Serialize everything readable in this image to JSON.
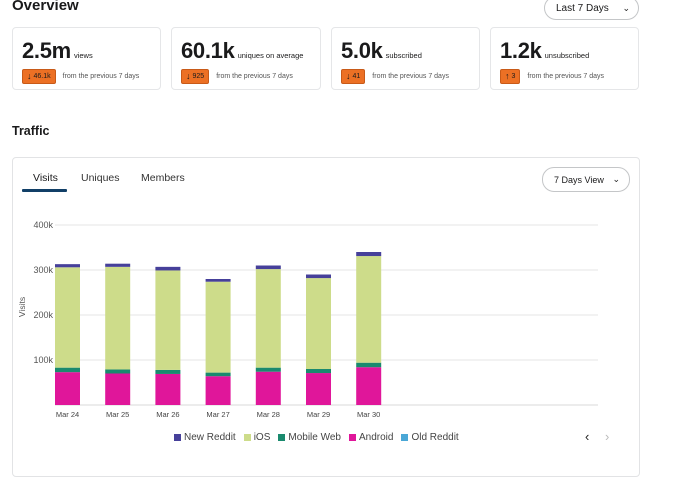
{
  "overview": {
    "title": "Overview",
    "range_select": {
      "value": "Last 7 Days"
    },
    "stats": [
      {
        "value": "2.5m",
        "label": "views",
        "delta": "46.1k",
        "direction": "down",
        "note": "from the previous 7 days"
      },
      {
        "value": "60.1k",
        "label": "uniques on average",
        "delta": "925",
        "direction": "down",
        "note": "from the previous 7 days"
      },
      {
        "value": "5.0k",
        "label": "subscribed",
        "delta": "41",
        "direction": "down",
        "note": "from the previous 7 days"
      },
      {
        "value": "1.2k",
        "label": "unsubscribed",
        "delta": "3",
        "direction": "up",
        "note": "from the previous 7 days"
      }
    ]
  },
  "traffic": {
    "title": "Traffic",
    "tabs": [
      "Visits",
      "Uniques",
      "Members"
    ],
    "active_tab": "Visits",
    "view_select": {
      "value": "7 Days View"
    }
  },
  "colors": {
    "new_reddit": "#46409a",
    "ios": "#cddc8a",
    "mobile_web": "#1a8a6e",
    "android": "#e0169a",
    "old_reddit": "#4aa7d6",
    "badge": "#ec7024",
    "accent": "#113f67"
  },
  "chart_data": {
    "type": "bar",
    "stacked": true,
    "title": "",
    "xlabel": "",
    "ylabel": "Visits",
    "ylim": [
      0,
      400000
    ],
    "yticks": [
      "100k",
      "200k",
      "300k",
      "400k"
    ],
    "ytick_values": [
      100000,
      200000,
      300000,
      400000
    ],
    "categories": [
      "Mar 24",
      "Mar 25",
      "Mar 26",
      "Mar 27",
      "Mar 28",
      "Mar 29",
      "Mar 30"
    ],
    "series": [
      {
        "name": "Android",
        "key": "android",
        "values": [
          73000,
          70000,
          69000,
          64000,
          74000,
          71000,
          84000
        ]
      },
      {
        "name": "Mobile Web",
        "key": "mobile_web",
        "values": [
          10000,
          9000,
          9000,
          8000,
          9000,
          9000,
          10000
        ]
      },
      {
        "name": "iOS",
        "key": "ios",
        "values": [
          223000,
          228000,
          221000,
          202000,
          219000,
          202000,
          237000
        ]
      },
      {
        "name": "New Reddit",
        "key": "new_reddit",
        "values": [
          7000,
          7000,
          8000,
          6000,
          8000,
          8000,
          9000
        ]
      },
      {
        "name": "Old Reddit",
        "key": "old_reddit",
        "values": [
          0,
          0,
          0,
          0,
          0,
          0,
          0
        ]
      }
    ],
    "legend": [
      {
        "name": "New Reddit",
        "key": "new_reddit"
      },
      {
        "name": "iOS",
        "key": "ios"
      },
      {
        "name": "Mobile Web",
        "key": "mobile_web"
      },
      {
        "name": "Android",
        "key": "android"
      },
      {
        "name": "Old Reddit",
        "key": "old_reddit"
      }
    ],
    "legend_position": "bottom",
    "grid": true
  },
  "pager": {
    "prev": "‹",
    "next": "›"
  }
}
